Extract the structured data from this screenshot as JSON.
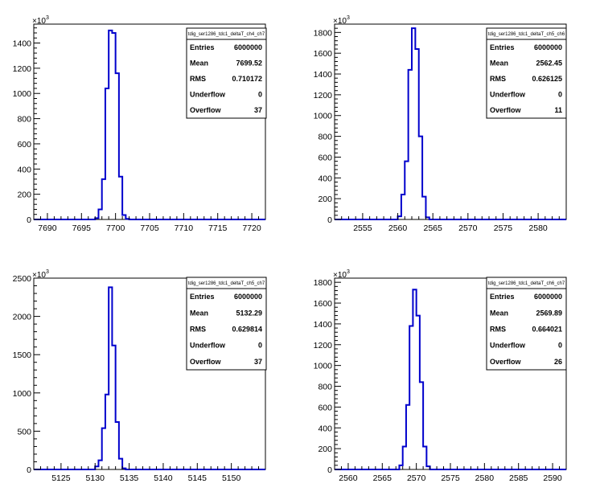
{
  "colors": {
    "histogram": "#0000cc",
    "axis": "#000000",
    "background": "#ffffff"
  },
  "chart_data": [
    {
      "type": "histogram",
      "title": "tdig_ser1286_tdc1_deltaT_ch4_ch7",
      "exponent": "10",
      "exponent_power": "3",
      "xlim": [
        7688,
        7722
      ],
      "ylim": [
        0,
        1550
      ],
      "xticks": [
        7690,
        7695,
        7700,
        7705,
        7710,
        7715,
        7720
      ],
      "yticks": [
        0,
        200,
        400,
        600,
        800,
        1000,
        1200,
        1400
      ],
      "bin_width": 0.5,
      "bins_x": [
        7697,
        7697.5,
        7698,
        7698.5,
        7699,
        7699.5,
        7700,
        7700.5,
        7701,
        7701.5
      ],
      "bins_y": [
        10,
        80,
        320,
        1040,
        1500,
        1480,
        1160,
        340,
        35,
        5
      ],
      "stats": [
        {
          "label": "Entries",
          "value": "6000000"
        },
        {
          "label": "Mean",
          "value": "7699.52"
        },
        {
          "label": "RMS",
          "value": "0.710172"
        },
        {
          "label": "Underflow",
          "value": "0"
        },
        {
          "label": "Overflow",
          "value": "37"
        }
      ]
    },
    {
      "type": "histogram",
      "title": "tdig_ser1286_tdc1_deltaT_ch5_ch6",
      "exponent": "10",
      "exponent_power": "3",
      "xlim": [
        2551,
        2584
      ],
      "ylim": [
        0,
        1880
      ],
      "xticks": [
        2555,
        2560,
        2565,
        2570,
        2575,
        2580
      ],
      "yticks": [
        0,
        200,
        400,
        600,
        800,
        1000,
        1200,
        1400,
        1600,
        1800
      ],
      "bin_width": 0.5,
      "bins_x": [
        2560,
        2560.5,
        2561,
        2561.5,
        2562,
        2562.5,
        2563,
        2563.5,
        2564
      ],
      "bins_y": [
        30,
        240,
        560,
        1440,
        1840,
        1640,
        800,
        220,
        20
      ],
      "stats": [
        {
          "label": "Entries",
          "value": "6000000"
        },
        {
          "label": "Mean",
          "value": "2562.45"
        },
        {
          "label": "RMS",
          "value": "0.626125"
        },
        {
          "label": "Underflow",
          "value": "0"
        },
        {
          "label": "Overflow",
          "value": "11"
        }
      ]
    },
    {
      "type": "histogram",
      "title": "tdig_ser1286_tdc1_deltaT_ch5_ch7",
      "exponent": "10",
      "exponent_power": "3",
      "xlim": [
        5121,
        5155
      ],
      "ylim": [
        0,
        2500
      ],
      "xticks": [
        5125,
        5130,
        5135,
        5140,
        5145,
        5150
      ],
      "yticks": [
        0,
        500,
        1000,
        1500,
        2000,
        2500
      ],
      "bin_width": 0.5,
      "bins_x": [
        5130,
        5130.5,
        5131,
        5131.5,
        5132,
        5132.5,
        5133,
        5133.5,
        5134
      ],
      "bins_y": [
        40,
        120,
        540,
        980,
        2380,
        1620,
        620,
        140,
        15
      ],
      "stats": [
        {
          "label": "Entries",
          "value": "6000000"
        },
        {
          "label": "Mean",
          "value": "5132.29"
        },
        {
          "label": "RMS",
          "value": "0.629814"
        },
        {
          "label": "Underflow",
          "value": "0"
        },
        {
          "label": "Overflow",
          "value": "37"
        }
      ]
    },
    {
      "type": "histogram",
      "title": "tdig_ser1286_tdc1_deltaT_ch6_ch7",
      "exponent": "10",
      "exponent_power": "3",
      "xlim": [
        2558,
        2592
      ],
      "ylim": [
        0,
        1840
      ],
      "xticks": [
        2560,
        2565,
        2570,
        2575,
        2580,
        2585,
        2590
      ],
      "yticks": [
        0,
        200,
        400,
        600,
        800,
        1000,
        1200,
        1400,
        1600,
        1800
      ],
      "bin_width": 0.5,
      "bins_x": [
        2567.5,
        2568,
        2568.5,
        2569,
        2569.5,
        2570,
        2570.5,
        2571,
        2571.5
      ],
      "bins_y": [
        40,
        220,
        620,
        1380,
        1730,
        1480,
        840,
        220,
        30
      ],
      "stats": [
        {
          "label": "Entries",
          "value": "6000000"
        },
        {
          "label": "Mean",
          "value": "2569.89"
        },
        {
          "label": "RMS",
          "value": "0.664021"
        },
        {
          "label": "Underflow",
          "value": "0"
        },
        {
          "label": "Overflow",
          "value": "26"
        }
      ]
    }
  ]
}
